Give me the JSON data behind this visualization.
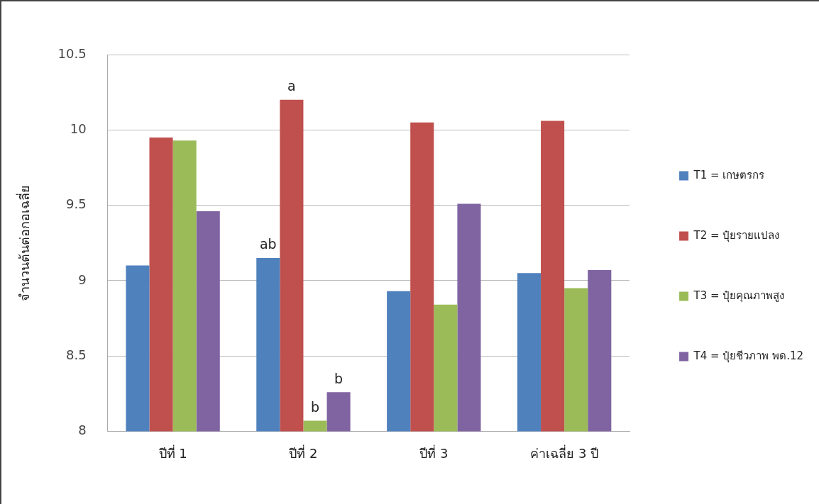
{
  "chart_data": {
    "type": "bar",
    "ylabel": "จำนวนต้นต่อกอเฉลี่ย",
    "categories": [
      "ปีที่ 1",
      "ปีที่ 2",
      "ปีที่ 3",
      "ค่าเฉลี่ย 3 ปี"
    ],
    "series": [
      {
        "name": "T1 = เกษตรกร",
        "color": "#4f81bd",
        "values": [
          9.1,
          9.15,
          8.93,
          9.05
        ]
      },
      {
        "name": "T2 = ปุ๋ยรายแปลง",
        "color": "#c0504d",
        "values": [
          9.95,
          10.2,
          10.05,
          10.06
        ]
      },
      {
        "name": "T3 = ปุ๋ยคุณภาพสูง",
        "color": "#9bbb59",
        "values": [
          9.93,
          8.07,
          8.84,
          8.95
        ]
      },
      {
        "name": "T4 = ปุ๋ยชีวภาพ พด.12",
        "color": "#8064a2",
        "values": [
          9.46,
          8.26,
          9.51,
          9.07
        ]
      }
    ],
    "ylim": [
      8,
      10.5
    ],
    "yticks": [
      8,
      8.5,
      9,
      9.5,
      10,
      10.5
    ],
    "grid": "y",
    "legend": "right",
    "annotations": [
      {
        "text": "ab",
        "x": "ปีที่ 2",
        "y": 9.15
      },
      {
        "text": "a",
        "x": "ปีที่ 2",
        "y": 10.2
      },
      {
        "text": "b",
        "x": "ปีที่ 2",
        "y": 8.07
      },
      {
        "text": "b",
        "x": "ปีที่ 2",
        "y": 8.26
      }
    ]
  }
}
